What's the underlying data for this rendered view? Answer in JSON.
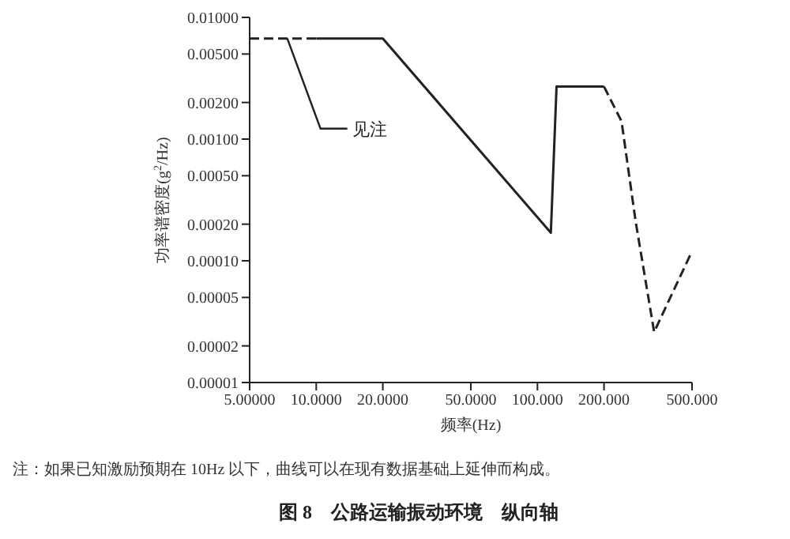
{
  "chart_data": {
    "type": "line",
    "title": "图 8　公路运输振动环境　纵向轴",
    "xlabel": "频率(Hz)",
    "ylabel": "功率谱密度(g$^{2}$/Hz)",
    "annotations": [
      {
        "text": "见注",
        "x": 7.4,
        "y": 0.0067
      },
      "注：如果已知激励预期在 10Hz 以下，曲线可以在现有数据基础上延伸而构成。"
    ],
    "log": "xy",
    "grid": false,
    "marker": "none",
    "xlim": [
      5,
      500
    ],
    "ylim": [
      1e-05,
      0.01
    ],
    "xticks": [
      {
        "value": 5,
        "label": "5.00000"
      },
      {
        "value": 10,
        "label": "10.0000"
      },
      {
        "value": 20,
        "label": "20.0000"
      },
      {
        "value": 50,
        "label": "50.0000"
      },
      {
        "value": 100,
        "label": "100.000"
      },
      {
        "value": 200,
        "label": "200.000"
      },
      {
        "value": 500,
        "label": "500.000"
      }
    ],
    "yticks": [
      {
        "value": 0.01,
        "label": "0.01000"
      },
      {
        "value": 0.005,
        "label": "0.00500"
      },
      {
        "value": 0.002,
        "label": "0.00200"
      },
      {
        "value": 0.001,
        "label": "0.00100"
      },
      {
        "value": 0.0005,
        "label": "0.00050"
      },
      {
        "value": 0.0002,
        "label": "0.00020"
      },
      {
        "value": 0.0001,
        "label": "0.00010"
      },
      {
        "value": 5e-05,
        "label": "0.00005"
      },
      {
        "value": 2e-05,
        "label": "0.00002"
      },
      {
        "value": 1e-05,
        "label": "0.00001"
      }
    ],
    "series": [
      {
        "color": "#222222",
        "line_style": "dashed",
        "x": [
          5,
          10
        ],
        "values": [
          0.0067,
          0.0067
        ]
      },
      {
        "color": "#222222",
        "line_style": "solid",
        "x": [
          10,
          20,
          115,
          122,
          200
        ],
        "values": [
          0.0067,
          0.0067,
          0.00017,
          0.0027,
          0.0027
        ]
      },
      {
        "color": "#222222",
        "line_style": "dashed",
        "x": [
          200,
          240,
          278,
          337,
          500
        ],
        "values": [
          0.0027,
          0.0014,
          0.00021,
          2.6e-05,
          0.00012
        ]
      }
    ]
  }
}
